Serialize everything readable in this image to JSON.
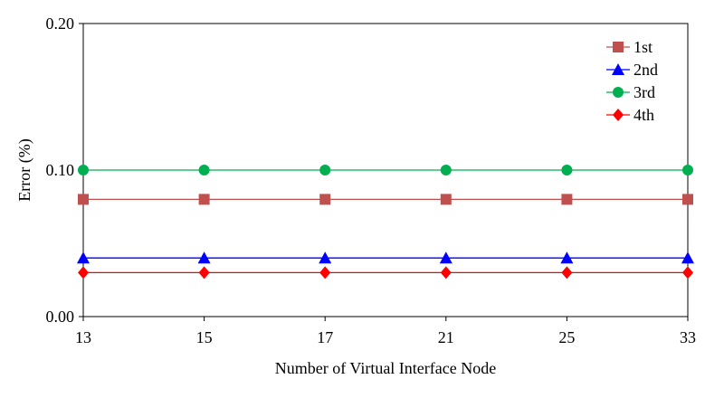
{
  "chart_data": {
    "type": "line",
    "categories": [
      "13",
      "15",
      "17",
      "21",
      "25",
      "33"
    ],
    "xlabel": "Number of Virtual Interface Node",
    "ylabel": "Error (%)",
    "ylim": [
      0,
      0.2
    ],
    "yticks": [
      "0.00",
      "0.10",
      "0.20"
    ],
    "grid": false,
    "legend": "top-right",
    "series": [
      {
        "name": "1st",
        "values": [
          0.08,
          0.08,
          0.08,
          0.08,
          0.08,
          0.08
        ],
        "color": "#c0504d",
        "marker": "square"
      },
      {
        "name": "2nd",
        "values": [
          0.04,
          0.04,
          0.04,
          0.04,
          0.04,
          0.04
        ],
        "color": "#0000ff",
        "marker": "triangle"
      },
      {
        "name": "3rd",
        "values": [
          0.1,
          0.1,
          0.1,
          0.1,
          0.1,
          0.1
        ],
        "color": "#00b050",
        "marker": "circle"
      },
      {
        "name": "4th",
        "values": [
          0.03,
          0.03,
          0.03,
          0.03,
          0.03,
          0.03
        ],
        "color": "#ff0000",
        "marker": "diamond"
      }
    ]
  }
}
